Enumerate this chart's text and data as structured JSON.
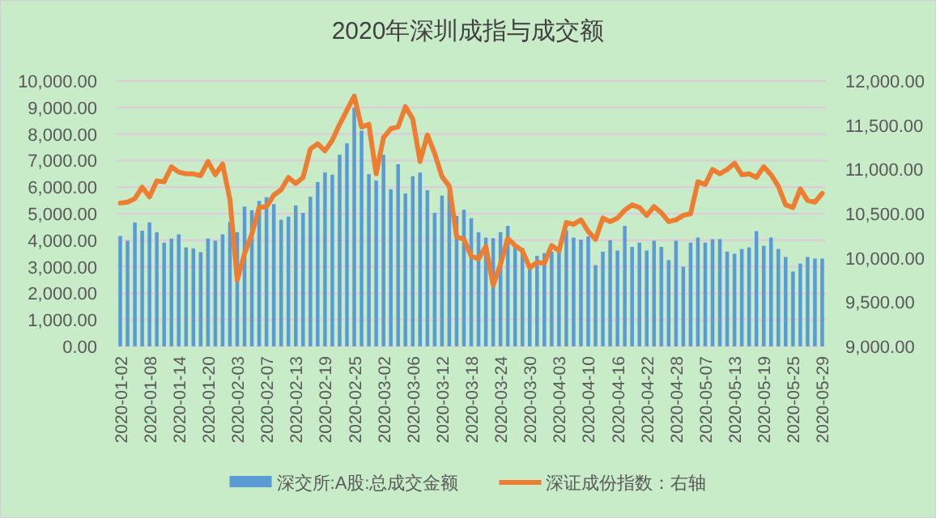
{
  "chart_data": {
    "type": "bar",
    "title": "2020年深圳成指与成交额",
    "categories": [
      "2020-01-02",
      null,
      null,
      null,
      "2020-01-08",
      null,
      null,
      null,
      "2020-01-14",
      null,
      null,
      null,
      "2020-01-20",
      null,
      null,
      null,
      "2020-02-03",
      null,
      null,
      null,
      "2020-02-07",
      null,
      null,
      null,
      "2020-02-13",
      null,
      null,
      null,
      "2020-02-19",
      null,
      null,
      null,
      "2020-02-25",
      null,
      null,
      null,
      "2020-03-02",
      null,
      null,
      null,
      "2020-03-06",
      null,
      null,
      null,
      "2020-03-12",
      null,
      null,
      null,
      "2020-03-18",
      null,
      null,
      null,
      "2020-03-24",
      null,
      null,
      null,
      "2020-03-30",
      null,
      null,
      null,
      "2020-04-03",
      null,
      null,
      null,
      "2020-04-10",
      null,
      null,
      null,
      "2020-04-16",
      null,
      null,
      null,
      "2020-04-22",
      null,
      null,
      null,
      "2020-04-28",
      null,
      null,
      null,
      "2020-05-07",
      null,
      null,
      null,
      "2020-05-13",
      null,
      null,
      null,
      "2020-05-19",
      null,
      null,
      null,
      "2020-05-25",
      null,
      null,
      null,
      "2020-05-29"
    ],
    "series": [
      {
        "name": "深交所:A股:总成交金额",
        "color": "#5b9bd5",
        "values": [
          4160,
          3980,
          4670,
          4360,
          4670,
          4300,
          3910,
          4060,
          4220,
          3730,
          3690,
          3550,
          4060,
          3980,
          4220,
          4690,
          4300,
          5270,
          5130,
          5480,
          5620,
          5360,
          4770,
          4890,
          5310,
          5030,
          5640,
          6190,
          6550,
          6470,
          7220,
          7650,
          8990,
          8130,
          6490,
          6250,
          7220,
          5920,
          6860,
          5760,
          6410,
          6550,
          5880,
          5030,
          5680,
          5800,
          4910,
          5150,
          4830,
          4300,
          4100,
          4080,
          4300,
          4540,
          3750,
          3710,
          3000,
          3410,
          3510,
          3570,
          3670,
          4380,
          4100,
          4020,
          4140,
          3060,
          3570,
          4000,
          3610,
          4540,
          3750,
          3910,
          3610,
          3980,
          3750,
          3250,
          3980,
          3000,
          3910,
          4100,
          3910,
          4040,
          4040,
          3570,
          3490,
          3670,
          3730,
          4340,
          3790,
          4100,
          3670,
          3370,
          2820,
          3120,
          3370,
          3310,
          3310
        ]
      },
      {
        "name": "深证成份指数：右轴",
        "type": "line",
        "axis": "y2",
        "color": "#ed7d31",
        "values": [
          10620,
          10630,
          10670,
          10800,
          10690,
          10870,
          10860,
          11030,
          10970,
          10950,
          10950,
          10930,
          11090,
          10940,
          11060,
          10660,
          9750,
          10050,
          10270,
          10570,
          10580,
          10710,
          10770,
          10910,
          10840,
          10910,
          11230,
          11290,
          11210,
          11330,
          11510,
          11670,
          11830,
          11480,
          11510,
          10950,
          11360,
          11460,
          11480,
          11710,
          11570,
          11090,
          11390,
          11180,
          10920,
          10810,
          10240,
          10210,
          10020,
          9990,
          10130,
          9690,
          9930,
          10220,
          10140,
          10080,
          9890,
          9950,
          9940,
          10140,
          10080,
          10400,
          10380,
          10430,
          10300,
          10210,
          10450,
          10410,
          10450,
          10540,
          10600,
          10570,
          10480,
          10580,
          10510,
          10410,
          10430,
          10480,
          10500,
          10860,
          10830,
          11000,
          10950,
          11000,
          11070,
          10940,
          10950,
          10910,
          11030,
          10940,
          10810,
          10600,
          10570,
          10780,
          10650,
          10630,
          10730
        ]
      }
    ],
    "ylim": [
      0,
      10000
    ],
    "yticks": [
      {
        "value": 0,
        "label": "0.00"
      },
      {
        "value": 1000,
        "label": "1,000.00"
      },
      {
        "value": 2000,
        "label": "2,000.00"
      },
      {
        "value": 3000,
        "label": "3,000.00"
      },
      {
        "value": 4000,
        "label": "4,000.00"
      },
      {
        "value": 5000,
        "label": "5,000.00"
      },
      {
        "value": 6000,
        "label": "6,000.00"
      },
      {
        "value": 7000,
        "label": "7,000.00"
      },
      {
        "value": 8000,
        "label": "8,000.00"
      },
      {
        "value": 9000,
        "label": "9,000.00"
      },
      {
        "value": 10000,
        "label": "10,000.00"
      }
    ],
    "y2lim": [
      9000,
      12000
    ],
    "y2ticks": [
      {
        "value": 9000,
        "label": "9,000.00"
      },
      {
        "value": 9500,
        "label": "9,500.00"
      },
      {
        "value": 10000,
        "label": "10,000.00"
      },
      {
        "value": 10500,
        "label": "10,500.00"
      },
      {
        "value": 11000,
        "label": "11,000.00"
      },
      {
        "value": 11500,
        "label": "11,500.00"
      },
      {
        "value": 12000,
        "label": "12,000.00"
      }
    ],
    "grid": "y",
    "legend": "bottom"
  }
}
